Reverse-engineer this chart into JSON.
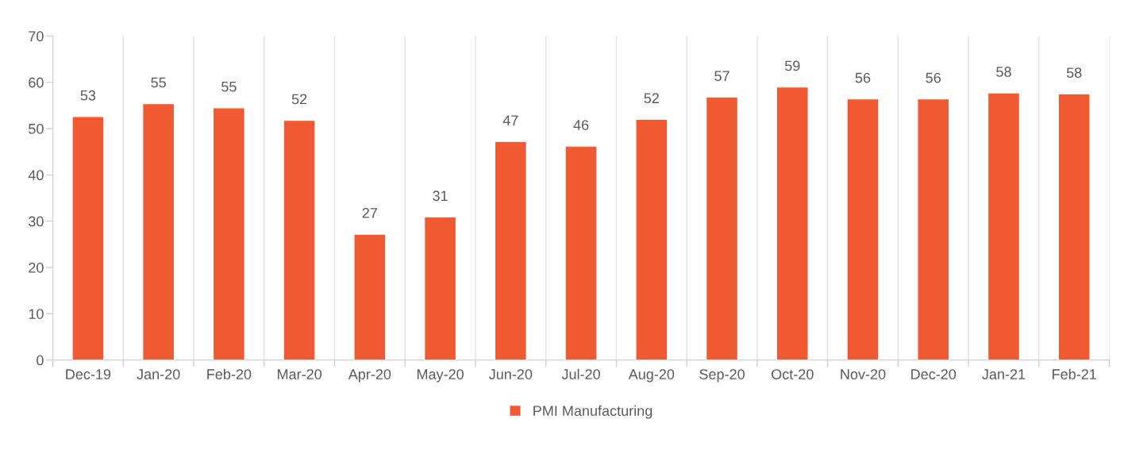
{
  "chart_data": {
    "type": "bar",
    "categories": [
      "Dec-19",
      "Jan-20",
      "Feb-20",
      "Mar-20",
      "Apr-20",
      "May-20",
      "Jun-20",
      "Jul-20",
      "Aug-20",
      "Sep-20",
      "Oct-20",
      "Nov-20",
      "Dec-20",
      "Jan-21",
      "Feb-21"
    ],
    "series": [
      {
        "name": "PMI Manufacturing",
        "color": "#f05a32",
        "values": [
          52.6,
          55.4,
          54.5,
          51.8,
          27.2,
          30.9,
          47.2,
          46.2,
          52.0,
          56.8,
          59.0,
          56.4,
          56.4,
          57.7,
          57.5
        ],
        "value_labels": [
          "53",
          "55",
          "55",
          "52",
          "27",
          "31",
          "47",
          "46",
          "52",
          "57",
          "59",
          "56",
          "56",
          "58",
          "58"
        ]
      }
    ],
    "ylim": [
      0,
      70
    ],
    "yticks": [
      0,
      10,
      20,
      30,
      40,
      50,
      60,
      70
    ],
    "grid": "x",
    "legend": "bottom"
  }
}
